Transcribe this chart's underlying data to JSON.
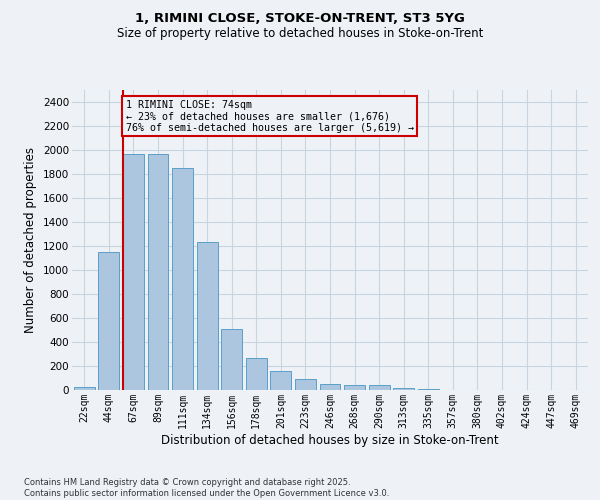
{
  "title1": "1, RIMINI CLOSE, STOKE-ON-TRENT, ST3 5YG",
  "title2": "Size of property relative to detached houses in Stoke-on-Trent",
  "xlabel": "Distribution of detached houses by size in Stoke-on-Trent",
  "ylabel": "Number of detached properties",
  "categories": [
    "22sqm",
    "44sqm",
    "67sqm",
    "89sqm",
    "111sqm",
    "134sqm",
    "156sqm",
    "178sqm",
    "201sqm",
    "223sqm",
    "246sqm",
    "268sqm",
    "290sqm",
    "313sqm",
    "335sqm",
    "357sqm",
    "380sqm",
    "402sqm",
    "424sqm",
    "447sqm",
    "469sqm"
  ],
  "values": [
    25,
    1150,
    1970,
    1970,
    1850,
    1230,
    510,
    270,
    155,
    90,
    50,
    40,
    40,
    15,
    5,
    3,
    2,
    2,
    1,
    1,
    1
  ],
  "bar_color": "#adc6e0",
  "bar_edgecolor": "#5a9fc9",
  "vline_color": "#cc0000",
  "box_edgecolor": "#cc0000",
  "annotation_title": "1 RIMINI CLOSE: 74sqm",
  "annotation_line1": "← 23% of detached houses are smaller (1,676)",
  "annotation_line2": "76% of semi-detached houses are larger (5,619) →",
  "ylim": [
    0,
    2500
  ],
  "yticks": [
    0,
    200,
    400,
    600,
    800,
    1000,
    1200,
    1400,
    1600,
    1800,
    2000,
    2200,
    2400
  ],
  "footer1": "Contains HM Land Registry data © Crown copyright and database right 2025.",
  "footer2": "Contains public sector information licensed under the Open Government Licence v3.0.",
  "bg_color": "#eef2f7",
  "grid_color": "#c8d4e0"
}
